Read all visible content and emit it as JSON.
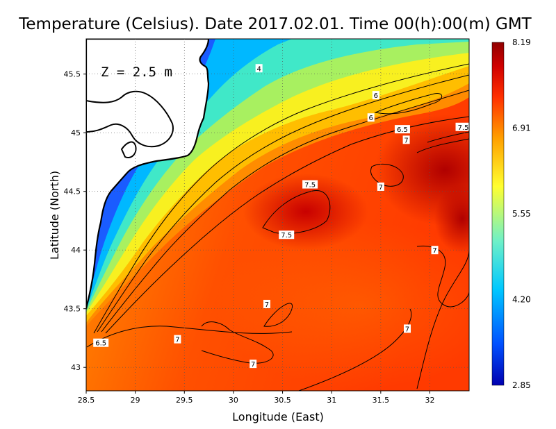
{
  "chart_data": {
    "type": "heatmap",
    "title": "Temperature (Celsius). Date 2017.02.01. Time 00(h):00(m)  GMT",
    "xlabel": "Longitude (East)",
    "ylabel": "Latitude (North)",
    "depth_label": "Z = 2.5 m",
    "xlim": [
      28.5,
      32.4
    ],
    "ylim": [
      42.8,
      45.8
    ],
    "xticks": [
      "28.5",
      "29",
      "29.5",
      "30",
      "30.5",
      "31",
      "31.5",
      "32"
    ],
    "yticks": [
      "43",
      "43.5",
      "44",
      "44.5",
      "45",
      "45.5"
    ],
    "grid": true,
    "colorbar": {
      "min": 2.85,
      "max": 8.19,
      "ticks": [
        "8.19",
        "6.91",
        "5.55",
        "4.20",
        "2.85"
      ],
      "colors": [
        "#0000b0",
        "#0050ff",
        "#00c8ff",
        "#6ef0c8",
        "#ffff30",
        "#ffa000",
        "#ff3000",
        "#d00000",
        "#900000"
      ]
    },
    "contour_labels": [
      {
        "text": "4",
        "lon": 30.26,
        "lat": 45.55
      },
      {
        "text": "6",
        "lon": 31.45,
        "lat": 45.32
      },
      {
        "text": "6",
        "lon": 31.4,
        "lat": 45.13
      },
      {
        "text": "6.5",
        "lon": 31.72,
        "lat": 45.03
      },
      {
        "text": "7",
        "lon": 31.76,
        "lat": 44.94
      },
      {
        "text": "7.5",
        "lon": 32.34,
        "lat": 45.05
      },
      {
        "text": "7.5",
        "lon": 30.78,
        "lat": 44.56
      },
      {
        "text": "7",
        "lon": 31.5,
        "lat": 44.54
      },
      {
        "text": "7.5",
        "lon": 30.54,
        "lat": 44.13
      },
      {
        "text": "7",
        "lon": 32.05,
        "lat": 44.0
      },
      {
        "text": "7",
        "lon": 30.34,
        "lat": 43.54
      },
      {
        "text": "7",
        "lon": 31.77,
        "lat": 43.33
      },
      {
        "text": "7",
        "lon": 29.43,
        "lat": 43.24
      },
      {
        "text": "6.5",
        "lon": 28.65,
        "lat": 43.21
      },
      {
        "text": "7",
        "lon": 30.2,
        "lat": 43.03
      }
    ]
  }
}
